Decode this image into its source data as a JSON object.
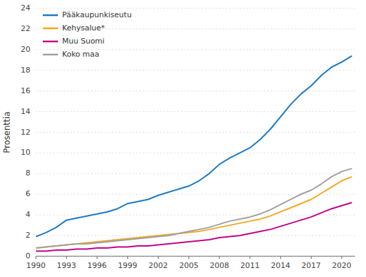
{
  "chart_data": {
    "type": "line",
    "ylabel": "Prosenttia",
    "x": [
      1990,
      1991,
      1992,
      1993,
      1994,
      1995,
      1996,
      1997,
      1998,
      1999,
      2000,
      2001,
      2002,
      2003,
      2004,
      2005,
      2006,
      2007,
      2008,
      2009,
      2010,
      2011,
      2012,
      2013,
      2014,
      2015,
      2016,
      2017,
      2018,
      2019,
      2020,
      2021
    ],
    "series": [
      {
        "name": "Pääkaupunkiseutu",
        "color": "#1a78c2",
        "values": [
          1.9,
          2.3,
          2.8,
          3.5,
          3.7,
          3.9,
          4.1,
          4.3,
          4.6,
          5.1,
          5.3,
          5.5,
          5.9,
          6.2,
          6.5,
          6.8,
          7.3,
          8.0,
          8.9,
          9.5,
          10.0,
          10.5,
          11.3,
          12.3,
          13.5,
          14.7,
          15.7,
          16.5,
          17.5,
          18.3,
          18.8,
          19.4
        ]
      },
      {
        "name": "Kehysalue*",
        "color": "#f5a623",
        "values": [
          0.8,
          0.9,
          1.0,
          1.1,
          1.2,
          1.3,
          1.4,
          1.5,
          1.6,
          1.7,
          1.8,
          1.9,
          2.0,
          2.1,
          2.2,
          2.3,
          2.4,
          2.6,
          2.8,
          3.0,
          3.2,
          3.4,
          3.6,
          3.9,
          4.3,
          4.7,
          5.1,
          5.5,
          6.1,
          6.7,
          7.3,
          7.7
        ]
      },
      {
        "name": "Muu Suomi",
        "color": "#c0008c",
        "values": [
          0.5,
          0.5,
          0.6,
          0.6,
          0.7,
          0.7,
          0.8,
          0.8,
          0.9,
          0.9,
          1.0,
          1.0,
          1.1,
          1.2,
          1.3,
          1.4,
          1.5,
          1.6,
          1.8,
          1.9,
          2.0,
          2.2,
          2.4,
          2.6,
          2.9,
          3.2,
          3.5,
          3.8,
          4.2,
          4.6,
          4.9,
          5.2
        ]
      },
      {
        "name": "Koko maa",
        "color": "#a0a0a0",
        "values": [
          0.8,
          0.9,
          1.0,
          1.1,
          1.2,
          1.2,
          1.3,
          1.4,
          1.5,
          1.6,
          1.7,
          1.8,
          1.9,
          2.0,
          2.2,
          2.4,
          2.6,
          2.8,
          3.1,
          3.4,
          3.6,
          3.8,
          4.1,
          4.5,
          5.0,
          5.5,
          6.0,
          6.4,
          7.0,
          7.7,
          8.2,
          8.5
        ]
      }
    ],
    "xlim": [
      1990,
      2021.3
    ],
    "xticks": [
      1990,
      1993,
      1996,
      1999,
      2002,
      2005,
      2008,
      2011,
      2014,
      2017,
      2020
    ],
    "ylim": [
      0,
      24
    ],
    "yticks": [
      0,
      2,
      4,
      6,
      8,
      10,
      12,
      14,
      16,
      18,
      20,
      22,
      24
    ],
    "grid": "y",
    "legend": "upper left"
  }
}
